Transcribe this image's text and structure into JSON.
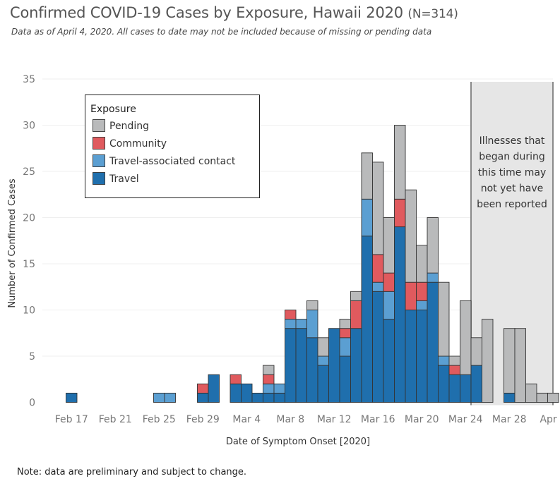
{
  "header": {
    "title": "Confirmed COVID-19 Cases by Exposure, Hawaii 2020",
    "title_n": "(N=314)",
    "subtitle": "Data as of April 4, 2020. All cases to date may not be included because of missing or pending data"
  },
  "note": "Note: data are preliminary and subject to change.",
  "colors": {
    "travel": "#1f6fad",
    "travel_contact": "#5b9fd2",
    "community": "#e05a5e",
    "pending": "#b9babb",
    "shade": "#e6e6e6",
    "grid": "#efefef"
  },
  "chart_data": {
    "type": "bar",
    "stacked": true,
    "xlabel": "Date of Symptom Onset [2020]",
    "ylabel": "Number of Confirmed Cases",
    "ylim": [
      0,
      35
    ],
    "yticks": [
      0,
      5,
      10,
      15,
      20,
      25,
      30,
      35
    ],
    "x_tick_labels": [
      "Feb 17",
      "Feb 21",
      "Feb 25",
      "Feb 29",
      "Mar 4",
      "Mar 8",
      "Mar 12",
      "Mar 16",
      "Mar 20",
      "Mar 24",
      "Mar 28",
      "Apr 1"
    ],
    "legend": {
      "title": "Exposure",
      "position": "top-left",
      "items": [
        "Pending",
        "Community",
        "Travel-associated contact",
        "Travel"
      ]
    },
    "shaded_region": {
      "from": "Mar 25",
      "to": "Apr 2",
      "text": [
        "Illnesses that",
        "began during",
        "this time may",
        "not yet have",
        "been reported"
      ]
    },
    "categories": [
      "Feb 17",
      "Feb 18",
      "Feb 19",
      "Feb 20",
      "Feb 21",
      "Feb 22",
      "Feb 23",
      "Feb 24",
      "Feb 25",
      "Feb 26",
      "Feb 27",
      "Feb 28",
      "Feb 29",
      "Mar 1",
      "Mar 2",
      "Mar 3",
      "Mar 4",
      "Mar 5",
      "Mar 6",
      "Mar 7",
      "Mar 8",
      "Mar 9",
      "Mar 10",
      "Mar 11",
      "Mar 12",
      "Mar 13",
      "Mar 14",
      "Mar 15",
      "Mar 16",
      "Mar 17",
      "Mar 18",
      "Mar 19",
      "Mar 20",
      "Mar 21",
      "Mar 22",
      "Mar 23",
      "Mar 24",
      "Mar 25",
      "Mar 26",
      "Mar 27",
      "Mar 28",
      "Mar 29",
      "Mar 30",
      "Mar 31",
      "Apr 1"
    ],
    "series": [
      {
        "name": "Travel",
        "values": [
          1,
          0,
          0,
          0,
          0,
          0,
          0,
          0,
          0,
          0,
          0,
          0,
          1,
          3,
          0,
          2,
          2,
          1,
          1,
          1,
          8,
          8,
          7,
          4,
          8,
          5,
          8,
          18,
          12,
          9,
          19,
          10,
          10,
          13,
          4,
          3,
          3,
          4,
          0,
          0,
          1,
          0,
          0,
          0,
          0
        ]
      },
      {
        "name": "Travel-associated contact",
        "values": [
          0,
          0,
          0,
          0,
          0,
          0,
          0,
          0,
          1,
          1,
          0,
          0,
          0,
          0,
          0,
          0,
          0,
          0,
          1,
          1,
          1,
          1,
          3,
          1,
          0,
          2,
          0,
          4,
          1,
          3,
          0,
          0,
          1,
          1,
          1,
          0,
          0,
          0,
          0,
          0,
          0,
          0,
          0,
          0,
          0
        ]
      },
      {
        "name": "Community",
        "values": [
          0,
          0,
          0,
          0,
          0,
          0,
          0,
          0,
          0,
          0,
          0,
          0,
          1,
          0,
          0,
          1,
          0,
          0,
          1,
          0,
          1,
          0,
          0,
          0,
          0,
          1,
          3,
          0,
          3,
          2,
          3,
          3,
          2,
          0,
          0,
          1,
          0,
          0,
          0,
          0,
          0,
          0,
          0,
          0,
          0
        ]
      },
      {
        "name": "Pending",
        "values": [
          0,
          0,
          0,
          0,
          0,
          0,
          0,
          0,
          0,
          0,
          0,
          0,
          0,
          0,
          0,
          0,
          0,
          0,
          1,
          0,
          0,
          0,
          1,
          2,
          0,
          1,
          1,
          5,
          10,
          6,
          8,
          10,
          4,
          6,
          8,
          1,
          8,
          3,
          9,
          0,
          7,
          8,
          2,
          1,
          1
        ]
      }
    ]
  }
}
